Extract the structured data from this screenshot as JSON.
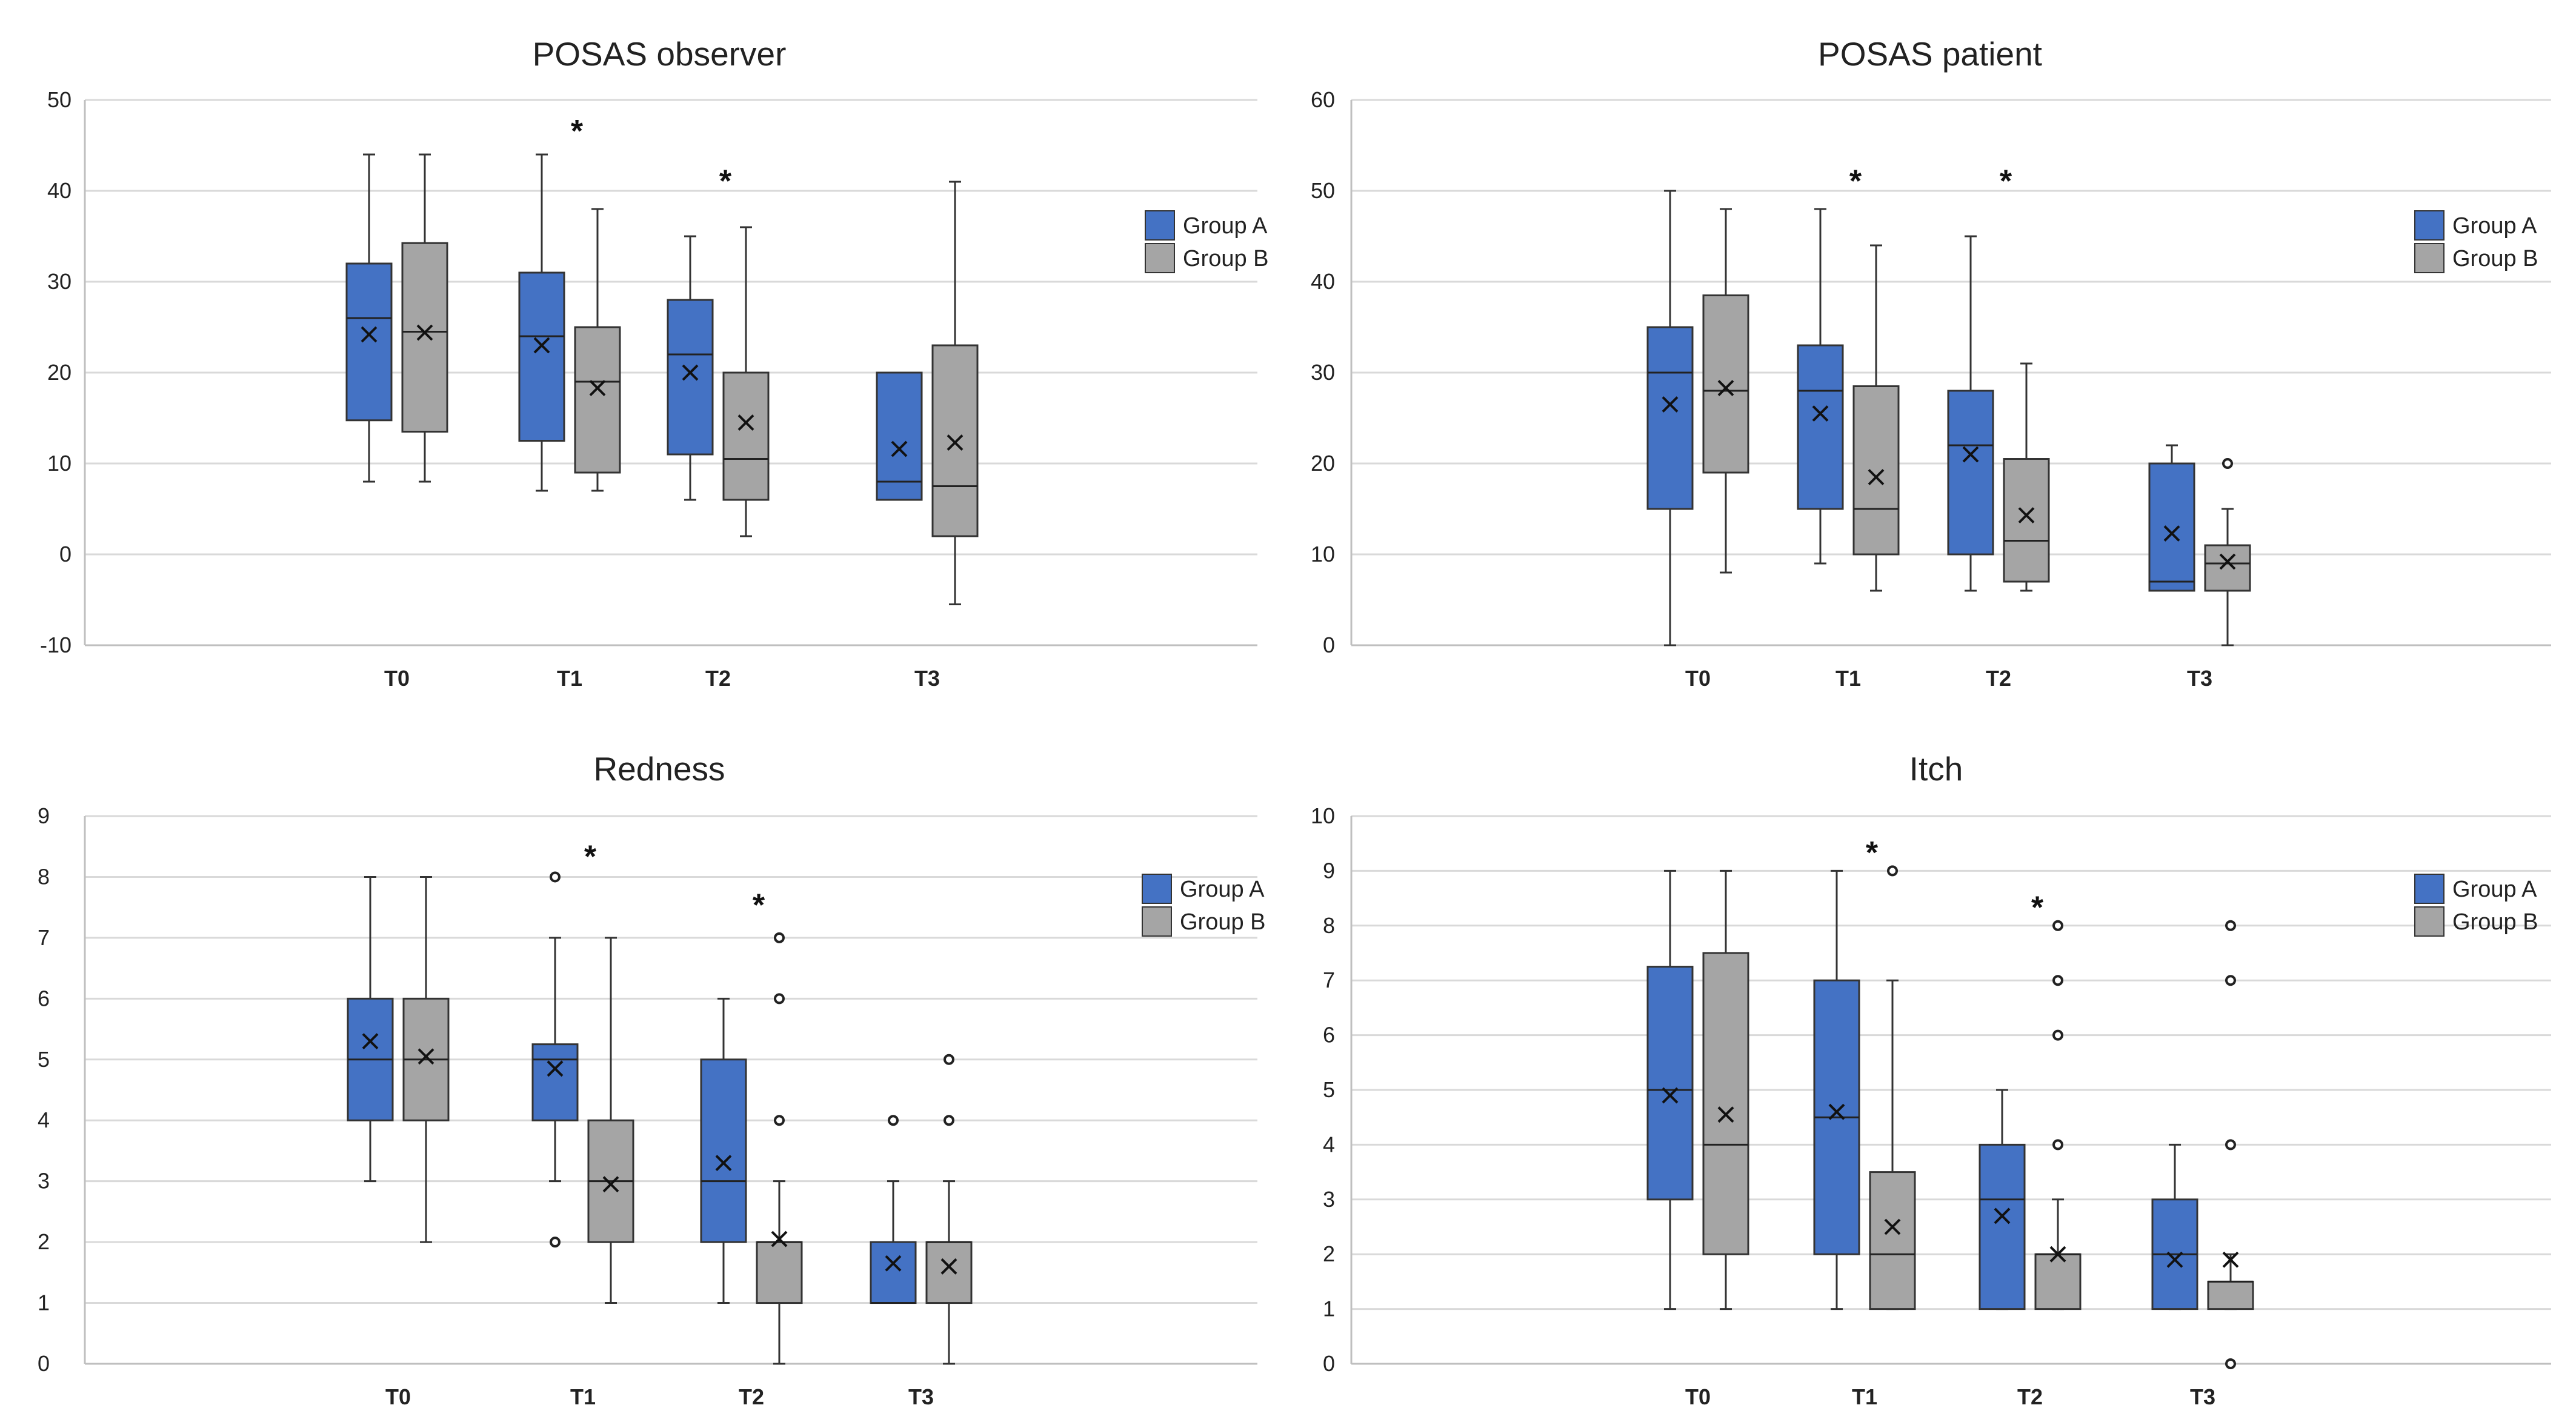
{
  "colors": {
    "group_a": "#4472C4",
    "group_b": "#A5A5A5",
    "grid": "#D9D9D9",
    "axis": "#BFBFBF",
    "whisker": "#333333"
  },
  "chart_data": [
    {
      "type": "box",
      "title": "POSAS observer",
      "ylim": [
        -10,
        50
      ],
      "yticks": [
        -10,
        0,
        10,
        20,
        30,
        40,
        50
      ],
      "categories": [
        "T0",
        "T1",
        "T2",
        "T3"
      ],
      "legend": [
        "Group A",
        "Group B"
      ],
      "series": [
        {
          "name": "Group A",
          "boxes": [
            {
              "min": 8,
              "q1": 14.75,
              "median": 26,
              "q3": 32,
              "max": 44,
              "mean": 24.2,
              "outliers": []
            },
            {
              "min": 7,
              "q1": 12.5,
              "median": 24,
              "q3": 31,
              "max": 44,
              "mean": 23,
              "outliers": []
            },
            {
              "min": 6,
              "q1": 11,
              "median": 22,
              "q3": 28,
              "max": 35,
              "mean": 20,
              "outliers": []
            },
            {
              "min": 6,
              "q1": 6,
              "median": 8,
              "q3": 20,
              "max": 20,
              "mean": 11.6,
              "outliers": []
            }
          ]
        },
        {
          "name": "Group B",
          "boxes": [
            {
              "min": 8,
              "q1": 13.5,
              "median": 24.5,
              "q3": 34.25,
              "max": 44,
              "mean": 24.4,
              "outliers": []
            },
            {
              "min": 7,
              "q1": 9,
              "median": 19,
              "q3": 25,
              "max": 38,
              "mean": 18.3,
              "outliers": []
            },
            {
              "min": 2,
              "q1": 6,
              "median": 10.5,
              "q3": 20,
              "max": 36,
              "mean": 14.5,
              "outliers": []
            },
            {
              "min": -5.5,
              "q1": 2,
              "median": 7.5,
              "q3": 23,
              "max": 41,
              "mean": 12.3,
              "outliers": []
            }
          ]
        }
      ],
      "significance": [
        {
          "category": "T1",
          "label": "*",
          "y": 47
        },
        {
          "category": "T2",
          "label": "*",
          "y": 41.5
        }
      ]
    },
    {
      "type": "box",
      "title": "POSAS patient",
      "ylim": [
        0,
        60
      ],
      "yticks": [
        0,
        10,
        20,
        30,
        40,
        50,
        60
      ],
      "categories": [
        "T0",
        "T1",
        "T2",
        "T3"
      ],
      "legend": [
        "Group A",
        "Group B"
      ],
      "series": [
        {
          "name": "Group A",
          "boxes": [
            {
              "min": 0,
              "q1": 15,
              "median": 30,
              "q3": 35,
              "max": 50,
              "mean": 26.5,
              "outliers": []
            },
            {
              "min": 9,
              "q1": 15,
              "median": 28,
              "q3": 33,
              "max": 48,
              "mean": 25.5,
              "outliers": []
            },
            {
              "min": 6,
              "q1": 10,
              "median": 22,
              "q3": 28,
              "max": 45,
              "mean": 21,
              "outliers": []
            },
            {
              "min": 6,
              "q1": 6,
              "median": 7,
              "q3": 20,
              "max": 22,
              "mean": 12.3,
              "outliers": []
            }
          ]
        },
        {
          "name": "Group B",
          "boxes": [
            {
              "min": 8,
              "q1": 19,
              "median": 28,
              "q3": 38.5,
              "max": 48,
              "mean": 28.3,
              "outliers": []
            },
            {
              "min": 6,
              "q1": 10,
              "median": 15,
              "q3": 28.5,
              "max": 44,
              "mean": 18.5,
              "outliers": []
            },
            {
              "min": 6,
              "q1": 7,
              "median": 11.5,
              "q3": 20.5,
              "max": 31,
              "mean": 14.3,
              "outliers": []
            },
            {
              "min": 0,
              "q1": 6,
              "median": 9,
              "q3": 11,
              "max": 15,
              "mean": 9.2,
              "outliers": [
                20
              ]
            }
          ]
        }
      ],
      "significance": [
        {
          "category": "T1",
          "label": "*",
          "y": 51.5
        },
        {
          "category": "T2",
          "label": "*",
          "y": 51.5
        }
      ]
    },
    {
      "type": "box",
      "title": "Redness",
      "ylim": [
        0,
        9
      ],
      "yticks": [
        0,
        1,
        2,
        3,
        4,
        5,
        6,
        7,
        8,
        9
      ],
      "categories": [
        "T0",
        "T1",
        "T2",
        "T3"
      ],
      "legend": [
        "Group A",
        "Group B"
      ],
      "series": [
        {
          "name": "Group A",
          "boxes": [
            {
              "min": 3,
              "q1": 4,
              "median": 5,
              "q3": 6,
              "max": 8,
              "mean": 5.3,
              "outliers": []
            },
            {
              "min": 3,
              "q1": 4,
              "median": 5,
              "q3": 5.25,
              "max": 7,
              "mean": 4.85,
              "outliers": [
                8,
                2
              ]
            },
            {
              "min": 1,
              "q1": 2,
              "median": 3,
              "q3": 5,
              "max": 6,
              "mean": 3.3,
              "outliers": []
            },
            {
              "min": 1,
              "q1": 1,
              "median": 1,
              "q3": 2,
              "max": 3,
              "mean": 1.65,
              "outliers": [
                4
              ]
            }
          ]
        },
        {
          "name": "Group B",
          "boxes": [
            {
              "min": 2,
              "q1": 4,
              "median": 5,
              "q3": 6,
              "max": 8,
              "mean": 5.05,
              "outliers": []
            },
            {
              "min": 1,
              "q1": 2,
              "median": 3,
              "q3": 4,
              "max": 7,
              "mean": 2.95,
              "outliers": []
            },
            {
              "min": 0,
              "q1": 1,
              "median": 2,
              "q3": 2,
              "max": 3,
              "mean": 2.05,
              "outliers": [
                4,
                6,
                7
              ]
            },
            {
              "min": 0,
              "q1": 1,
              "median": 2,
              "q3": 2,
              "max": 3,
              "mean": 1.6,
              "outliers": [
                4,
                5
              ]
            }
          ]
        }
      ],
      "significance": [
        {
          "category": "T1",
          "label": "*",
          "y": 8.4
        },
        {
          "category": "T2",
          "label": "*",
          "y": 7.6
        }
      ]
    },
    {
      "type": "box",
      "title": "Itch",
      "ylim": [
        0,
        10
      ],
      "yticks": [
        0,
        1,
        2,
        3,
        4,
        5,
        6,
        7,
        8,
        9,
        10
      ],
      "categories": [
        "T0",
        "T1",
        "T2",
        "T3"
      ],
      "legend": [
        "Group A",
        "Group B"
      ],
      "series": [
        {
          "name": "Group A",
          "boxes": [
            {
              "min": 1,
              "q1": 3,
              "median": 5,
              "q3": 7.25,
              "max": 9,
              "mean": 4.9,
              "outliers": []
            },
            {
              "min": 1,
              "q1": 2,
              "median": 4.5,
              "q3": 7,
              "max": 9,
              "mean": 4.6,
              "outliers": []
            },
            {
              "min": 1,
              "q1": 1,
              "median": 3,
              "q3": 4,
              "max": 5,
              "mean": 2.7,
              "outliers": []
            },
            {
              "min": 1,
              "q1": 1,
              "median": 2,
              "q3": 3,
              "max": 4,
              "mean": 1.9,
              "outliers": []
            }
          ]
        },
        {
          "name": "Group B",
          "boxes": [
            {
              "min": 1,
              "q1": 2,
              "median": 4,
              "q3": 7.5,
              "max": 9,
              "mean": 4.55,
              "outliers": []
            },
            {
              "min": 1,
              "q1": 1,
              "median": 2,
              "q3": 3.5,
              "max": 7,
              "mean": 2.5,
              "outliers": [
                9
              ]
            },
            {
              "min": 1,
              "q1": 1,
              "median": 2,
              "q3": 2,
              "max": 3,
              "mean": 2,
              "outliers": [
                4,
                6,
                7,
                8
              ]
            },
            {
              "min": 1,
              "q1": 1,
              "median": 1.5,
              "q3": 1.5,
              "max": 2,
              "mean": 1.9,
              "outliers": [
                4,
                7,
                8,
                0
              ]
            }
          ]
        }
      ],
      "significance": [
        {
          "category": "T1",
          "label": "*",
          "y": 9.4
        },
        {
          "category": "T2",
          "label": "*",
          "y": 8.4
        }
      ]
    }
  ]
}
